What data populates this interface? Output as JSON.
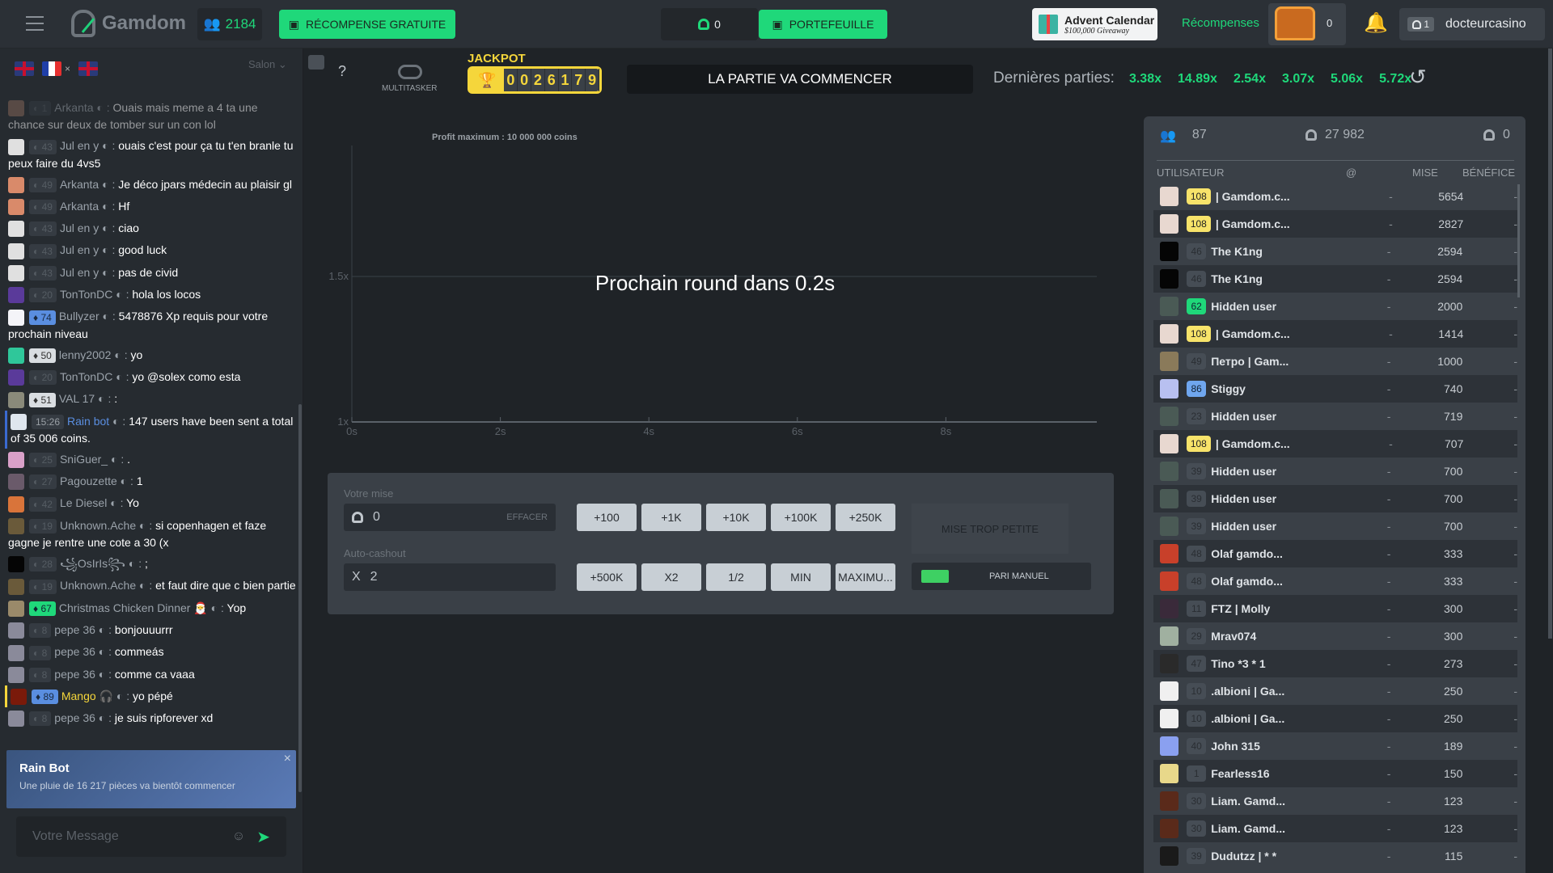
{
  "topbar": {
    "brand": "Gamdom",
    "online_count": "2184",
    "free_reward": "RÉCOMPENSE GRATUITE",
    "balance": "0",
    "wallet": "PORTEFEUILLE",
    "advent_title": "Advent Calendar",
    "advent_sub": "$100,000 Giveaway",
    "rewards": "Récompenses",
    "chest_count": "0",
    "user_level": "1",
    "username": "docteurcasino",
    "accent": "#1fd87a"
  },
  "chat": {
    "room_label": "Salon",
    "flags": [
      "uk",
      "fr",
      "uk"
    ],
    "messages": [
      {
        "av": "#8a6a5a",
        "lvl": "1",
        "type": "",
        "name": "Arkanta",
        "text": "Ouais mais meme a 4 ta une chance sur deux de tomber sur un con lol",
        "faded": true
      },
      {
        "av": "#e0e0e0",
        "lvl": "43",
        "type": "",
        "name": "Jul en y",
        "text": "ouais c'est pour ça tu t'en branle tu peux faire du 4vs5"
      },
      {
        "av": "#d98a6a",
        "lvl": "49",
        "type": "",
        "name": "Arkanta",
        "text": "Je déco jpars médecin au plaisir gl"
      },
      {
        "av": "#d98a6a",
        "lvl": "49",
        "type": "",
        "name": "Arkanta",
        "text": "Hf"
      },
      {
        "av": "#e0e0e0",
        "lvl": "43",
        "type": "",
        "name": "Jul en y",
        "text": "ciao"
      },
      {
        "av": "#e0e0e0",
        "lvl": "43",
        "type": "",
        "name": "Jul en y",
        "text": "good luck"
      },
      {
        "av": "#e0e0e0",
        "lvl": "43",
        "type": "",
        "name": "Jul en y",
        "text": "pas de civid"
      },
      {
        "av": "#5a3a9a",
        "lvl": "20",
        "type": "",
        "name": "TonTonDC",
        "text": "hola los locos"
      },
      {
        "av": "#f4f4f8",
        "lvl": "74",
        "type": "db",
        "name": "Bullyzer",
        "text": "5478876 Xp requis pour votre prochain niveau"
      },
      {
        "av": "#2fc79a",
        "lvl": "50",
        "type": "dw",
        "name": "lenny2002",
        "text": "yo"
      },
      {
        "av": "#5a3a9a",
        "lvl": "20",
        "type": "",
        "name": "TonTonDC",
        "text": "yo @solex como esta"
      },
      {
        "av": "#8a8a7a",
        "lvl": "51",
        "type": "dw",
        "name": "VAL 17",
        "text": ":"
      },
      {
        "av": "#dfe6ee",
        "lvl": "15:26",
        "type": "t",
        "name": "Rain bot",
        "text": "147 users have been sent a total of 35 006 coins.",
        "color": "#5a8ee0"
      },
      {
        "av": "#d9a0c8",
        "lvl": "25",
        "type": "",
        "name": "SniGuer_",
        "text": "."
      },
      {
        "av": "#6a5a6a",
        "lvl": "27",
        "type": "",
        "name": "Pagouzette",
        "text": "1"
      },
      {
        "av": "#d9743a",
        "lvl": "42",
        "type": "",
        "name": "Le Diesel",
        "text": "Yo"
      },
      {
        "av": "#6a5a3a",
        "lvl": "19",
        "type": "",
        "name": "Unknown.Ache",
        "text": "si copenhagen et faze gagne je rentre une cote a 30 (x"
      },
      {
        "av": "#050505",
        "lvl": "28",
        "type": "",
        "name": "꧁OsIrIs꧂",
        "text": ";"
      },
      {
        "av": "#6a5a3a",
        "lvl": "19",
        "type": "",
        "name": "Unknown.Ache",
        "text": "et faut dire que c bien partie"
      },
      {
        "av": "#9a8a6a",
        "lvl": "67",
        "type": "dg",
        "name": "Christmas Chicken Dinner 🎅",
        "text": "Yop"
      },
      {
        "av": "#8a8a9a",
        "lvl": "8",
        "type": "",
        "name": "pepe 36",
        "text": "bonjouuurrr"
      },
      {
        "av": "#8a8a9a",
        "lvl": "8",
        "type": "",
        "name": "pepe 36",
        "text": "commeás"
      },
      {
        "av": "#8a8a9a",
        "lvl": "8",
        "type": "",
        "name": "pepe 36",
        "text": "comme ca vaaa"
      },
      {
        "av": "#7a1a0a",
        "lvl": "89",
        "type": "db",
        "name": "Mango 🎧",
        "text": "yo pépé",
        "color": "#f5d63b"
      },
      {
        "av": "#8a8a9a",
        "lvl": "8",
        "type": "",
        "name": "pepe 36",
        "text": "je suis ripforever xd"
      }
    ],
    "rain_title": "Rain Bot",
    "rain_text": "Une pluie de 16 217 pièces va bientôt commencer",
    "input_placeholder": "Votre Message"
  },
  "game": {
    "multitasker": "MULTITASKER",
    "help": "?",
    "jackpot_label": "JACKPOT",
    "jackpot_digits": [
      "0",
      "0",
      "2",
      "6",
      "1",
      "7",
      "9"
    ],
    "status": "LA PARTIE VA COMMENCER",
    "last_games_label": "Dernières parties:",
    "last_games": [
      "3.38x",
      "14.89x",
      "2.54x",
      "3.07x",
      "5.06x",
      "5.72x"
    ],
    "max_profit": "Profit maximum : 10 000 000 coins",
    "countdown": "Prochain round dans 0.2s"
  },
  "chart_data": {
    "type": "line",
    "x_ticks": [
      "0s",
      "2s",
      "4s",
      "6s",
      "8s"
    ],
    "y_ticks": [
      "1x",
      "1.5x"
    ],
    "xlim": [
      0,
      8
    ],
    "ylim": [
      1,
      1.5
    ],
    "series": []
  },
  "bet": {
    "bet_label": "Votre mise",
    "bet_value": "0",
    "clear": "EFFACER",
    "cashout_label": "Auto-cashout",
    "cashout_prefix": "X",
    "cashout_value": "2",
    "row1": [
      "+100",
      "+1K",
      "+10K",
      "+100K",
      "+250K"
    ],
    "row2": [
      "+500K",
      "X2",
      "1/2",
      "MIN",
      "MAXIMU..."
    ],
    "place_bet": "MISE TROP PETITE",
    "manual": "PARI MANUEL"
  },
  "players": {
    "count": "87",
    "total_bet": "27 982",
    "total_profit": "0",
    "headers": [
      "UTILISATEUR",
      "@",
      "MISE",
      "BÉNÉFICE"
    ],
    "rows": [
      {
        "av": "#e8d8d0",
        "lvl": "108",
        "t": "gold",
        "name": "| Gamdom.c...",
        "at": "-",
        "bet": "5654",
        "profit": "-"
      },
      {
        "av": "#e8d8d0",
        "lvl": "108",
        "t": "gold",
        "name": "| Gamdom.c...",
        "at": "-",
        "bet": "2827",
        "profit": "-"
      },
      {
        "av": "#050505",
        "lvl": "46",
        "t": "",
        "name": "The K1ng",
        "at": "-",
        "bet": "2594",
        "profit": "-"
      },
      {
        "av": "#050505",
        "lvl": "46",
        "t": "",
        "name": "The K1ng",
        "at": "-",
        "bet": "2594",
        "profit": "-"
      },
      {
        "av": "#4a5a55",
        "lvl": "62",
        "t": "green",
        "name": "Hidden user",
        "at": "-",
        "bet": "2000",
        "profit": "-"
      },
      {
        "av": "#e8d8d0",
        "lvl": "108",
        "t": "gold",
        "name": "| Gamdom.c...",
        "at": "-",
        "bet": "1414",
        "profit": "-"
      },
      {
        "av": "#8a7a5a",
        "lvl": "49",
        "t": "",
        "name": "Петро | Gam...",
        "at": "-",
        "bet": "1000",
        "profit": "-"
      },
      {
        "av": "#b8c0f0",
        "lvl": "86",
        "t": "blue",
        "name": "Stiggy",
        "at": "-",
        "bet": "740",
        "profit": "-"
      },
      {
        "av": "#4a5a55",
        "lvl": "23",
        "t": "",
        "name": "Hidden user",
        "at": "-",
        "bet": "719",
        "profit": "-"
      },
      {
        "av": "#e8d8d0",
        "lvl": "108",
        "t": "gold",
        "name": "| Gamdom.c...",
        "at": "-",
        "bet": "707",
        "profit": "-"
      },
      {
        "av": "#4a5a55",
        "lvl": "39",
        "t": "",
        "name": "Hidden user",
        "at": "-",
        "bet": "700",
        "profit": "-"
      },
      {
        "av": "#4a5a55",
        "lvl": "39",
        "t": "",
        "name": "Hidden user",
        "at": "-",
        "bet": "700",
        "profit": "-"
      },
      {
        "av": "#4a5a55",
        "lvl": "39",
        "t": "",
        "name": "Hidden user",
        "at": "-",
        "bet": "700",
        "profit": "-"
      },
      {
        "av": "#c8402a",
        "lvl": "48",
        "t": "",
        "name": "Olaf gamdo...",
        "at": "-",
        "bet": "333",
        "profit": "-"
      },
      {
        "av": "#c8402a",
        "lvl": "48",
        "t": "",
        "name": "Olaf gamdo...",
        "at": "-",
        "bet": "333",
        "profit": "-"
      },
      {
        "av": "#3a2a3a",
        "lvl": "11",
        "t": "",
        "name": "FTZ | Molly",
        "at": "-",
        "bet": "300",
        "profit": "-"
      },
      {
        "av": "#a0b0a0",
        "lvl": "29",
        "t": "",
        "name": "Mrav074",
        "at": "-",
        "bet": "300",
        "profit": "-"
      },
      {
        "av": "#2a2a2a",
        "lvl": "47",
        "t": "",
        "name": "Tino *3 * 1",
        "at": "-",
        "bet": "273",
        "profit": "-"
      },
      {
        "av": "#f0f0f0",
        "lvl": "10",
        "t": "",
        "name": ".albioni | Ga...",
        "at": "-",
        "bet": "250",
        "profit": "-"
      },
      {
        "av": "#f0f0f0",
        "lvl": "10",
        "t": "",
        "name": ".albioni | Ga...",
        "at": "-",
        "bet": "250",
        "profit": "-"
      },
      {
        "av": "#8aa0f0",
        "lvl": "40",
        "t": "",
        "name": "John 315",
        "at": "-",
        "bet": "189",
        "profit": "-"
      },
      {
        "av": "#e8d88a",
        "lvl": "1",
        "t": "",
        "name": "Fearless16",
        "at": "-",
        "bet": "150",
        "profit": "-"
      },
      {
        "av": "#5a2a1a",
        "lvl": "30",
        "t": "",
        "name": "Liam. Gamd...",
        "at": "-",
        "bet": "123",
        "profit": "-"
      },
      {
        "av": "#5a2a1a",
        "lvl": "30",
        "t": "",
        "name": "Liam. Gamd...",
        "at": "-",
        "bet": "123",
        "profit": "-"
      },
      {
        "av": "#1a1a1a",
        "lvl": "39",
        "t": "",
        "name": "Dudutzz | * *",
        "at": "-",
        "bet": "115",
        "profit": "-"
      }
    ]
  }
}
